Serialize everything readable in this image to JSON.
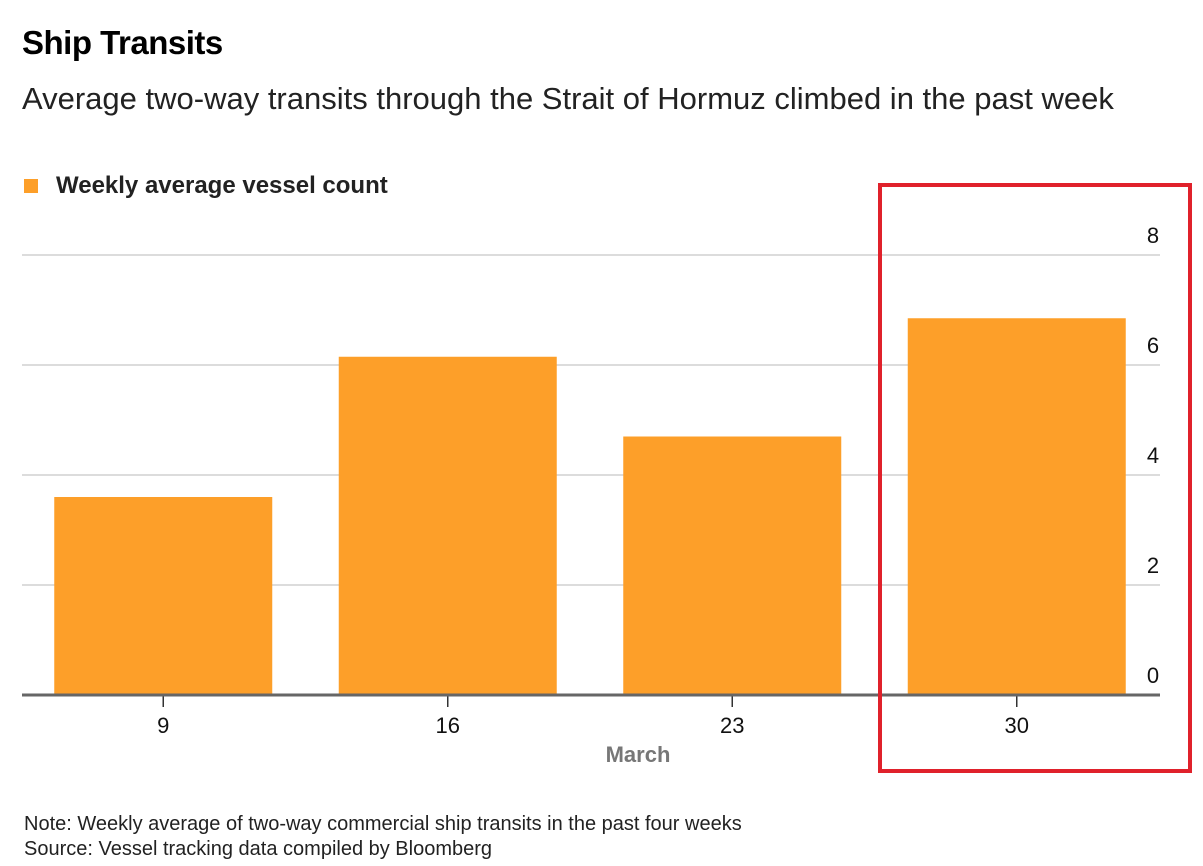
{
  "chart_data": {
    "type": "bar",
    "title": "Ship Transits",
    "subtitle": "Average two-way transits through the Strait of Hormuz climbed in the past week",
    "categories": [
      "9",
      "16",
      "23",
      "30"
    ],
    "xlabel": "March",
    "ylabel": "",
    "series": [
      {
        "name": "Weekly average vessel count",
        "values": [
          3.6,
          6.15,
          4.7,
          6.85
        ],
        "color": "#fd9f29"
      }
    ],
    "ylim": [
      0,
      8
    ],
    "yticks": [
      "0",
      "2",
      "4",
      "6",
      "8"
    ],
    "grid": true,
    "y_axis_side": "right",
    "legend_position": "top-left",
    "highlighted_category": "30",
    "highlight_color": "#e0212b"
  },
  "note": "Note: Weekly average of two-way commercial ship transits in the past four weeks",
  "source": "Source: Vessel tracking data compiled by Bloomberg"
}
